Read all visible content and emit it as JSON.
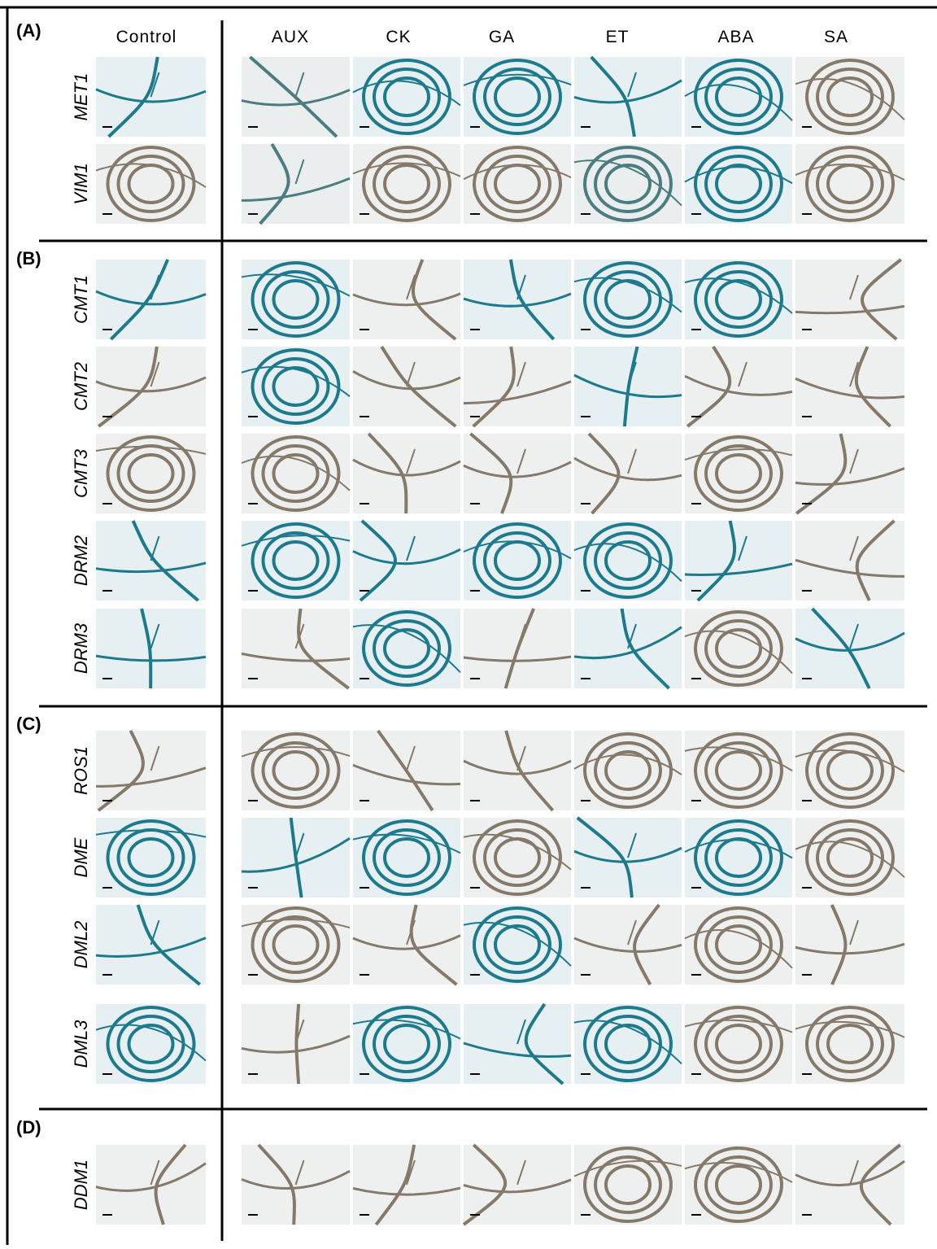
{
  "columns": [
    "Control",
    "AUX",
    "CK",
    "GA",
    "ET",
    "ABA",
    "SA"
  ],
  "panels": [
    {
      "label": "(A)",
      "genes": [
        "MET1",
        "VIM1"
      ]
    },
    {
      "label": "(B)",
      "genes": [
        "CMT1",
        "CMT2",
        "CMT3",
        "DRM2",
        "DRM3"
      ]
    },
    {
      "label": "(C)",
      "genes": [
        "ROS1",
        "DME",
        "DML2",
        "DML3"
      ]
    },
    {
      "label": "(D)",
      "genes": [
        "DDM1"
      ]
    }
  ]
}
